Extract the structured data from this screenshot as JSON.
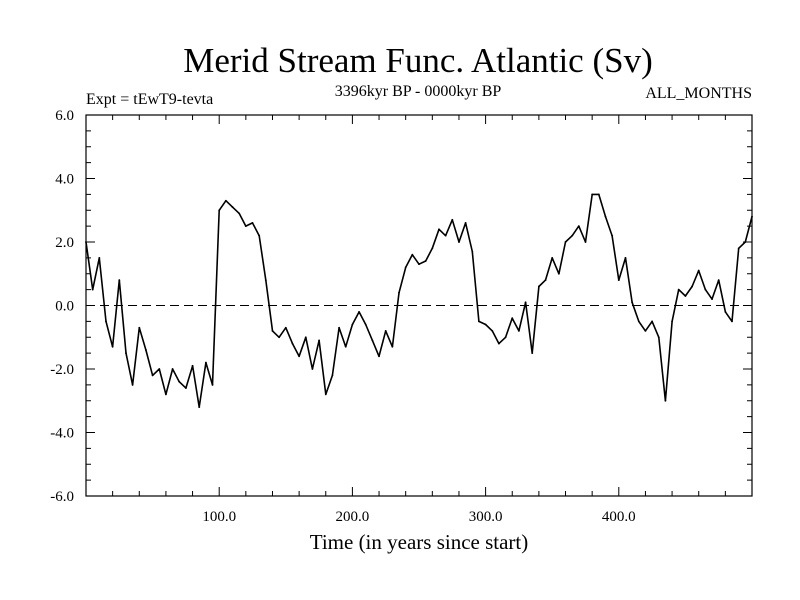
{
  "chart_data": {
    "type": "line",
    "title": "Merid Stream Func. Atlantic (Sv)",
    "subtitle_left": "Expt = tEwT9-tevta",
    "subtitle_center": "3396kyr BP - 0000kyr BP",
    "subtitle_right": "ALL_MONTHS",
    "xlabel": "Time (in years since start)",
    "ylabel": "",
    "xlim": [
      0,
      500
    ],
    "ylim": [
      -6,
      6
    ],
    "x_ticks": [
      100,
      200,
      300,
      400
    ],
    "x_tick_labels": [
      "100.0",
      "200.0",
      "300.0",
      "400.0"
    ],
    "y_ticks": [
      6,
      4,
      2,
      0,
      -2,
      -4,
      -6
    ],
    "y_tick_labels": [
      "6.0",
      "4.0",
      "2.0",
      "0.0",
      "-2.0",
      "-4.0",
      "-6.0"
    ],
    "reference_line": 0,
    "series": [
      {
        "name": "Merid Stream Func. Atlantic",
        "x": [
          0,
          5,
          10,
          15,
          20,
          25,
          30,
          35,
          40,
          45,
          50,
          55,
          60,
          65,
          70,
          75,
          80,
          85,
          90,
          95,
          100,
          105,
          110,
          115,
          120,
          125,
          130,
          135,
          140,
          145,
          150,
          155,
          160,
          165,
          170,
          175,
          180,
          185,
          190,
          195,
          200,
          205,
          210,
          215,
          220,
          225,
          230,
          235,
          240,
          245,
          250,
          255,
          260,
          265,
          270,
          275,
          280,
          285,
          290,
          295,
          300,
          305,
          310,
          315,
          320,
          325,
          330,
          335,
          340,
          345,
          350,
          355,
          360,
          365,
          370,
          375,
          380,
          385,
          390,
          395,
          400,
          405,
          410,
          415,
          420,
          425,
          430,
          435,
          440,
          445,
          450,
          455,
          460,
          465,
          470,
          475,
          480,
          485,
          490,
          495,
          500
        ],
        "values": [
          2.0,
          0.5,
          1.5,
          -0.5,
          -1.3,
          0.8,
          -1.5,
          -2.5,
          -0.7,
          -1.4,
          -2.2,
          -2.0,
          -2.8,
          -2.0,
          -2.4,
          -2.6,
          -1.9,
          -3.2,
          -1.8,
          -2.5,
          3.0,
          3.3,
          3.1,
          2.9,
          2.5,
          2.6,
          2.2,
          0.8,
          -0.8,
          -1.0,
          -0.7,
          -1.2,
          -1.6,
          -1.0,
          -2.0,
          -1.1,
          -2.8,
          -2.2,
          -0.7,
          -1.3,
          -0.6,
          -0.2,
          -0.6,
          -1.1,
          -1.6,
          -0.8,
          -1.3,
          0.4,
          1.2,
          1.6,
          1.3,
          1.4,
          1.8,
          2.4,
          2.2,
          2.7,
          2.0,
          2.6,
          1.7,
          -0.5,
          -0.6,
          -0.8,
          -1.2,
          -1.0,
          -0.4,
          -0.8,
          0.1,
          -1.5,
          0.6,
          0.8,
          1.5,
          1.0,
          2.0,
          2.2,
          2.5,
          2.0,
          3.5,
          3.5,
          2.8,
          2.2,
          0.8,
          1.5,
          0.1,
          -0.5,
          -0.8,
          -0.5,
          -1.0,
          -3.0,
          -0.5,
          0.5,
          0.3,
          0.6,
          1.1,
          0.5,
          0.2,
          0.8,
          -0.2,
          -0.5,
          1.8,
          2.0,
          2.8
        ]
      }
    ]
  }
}
